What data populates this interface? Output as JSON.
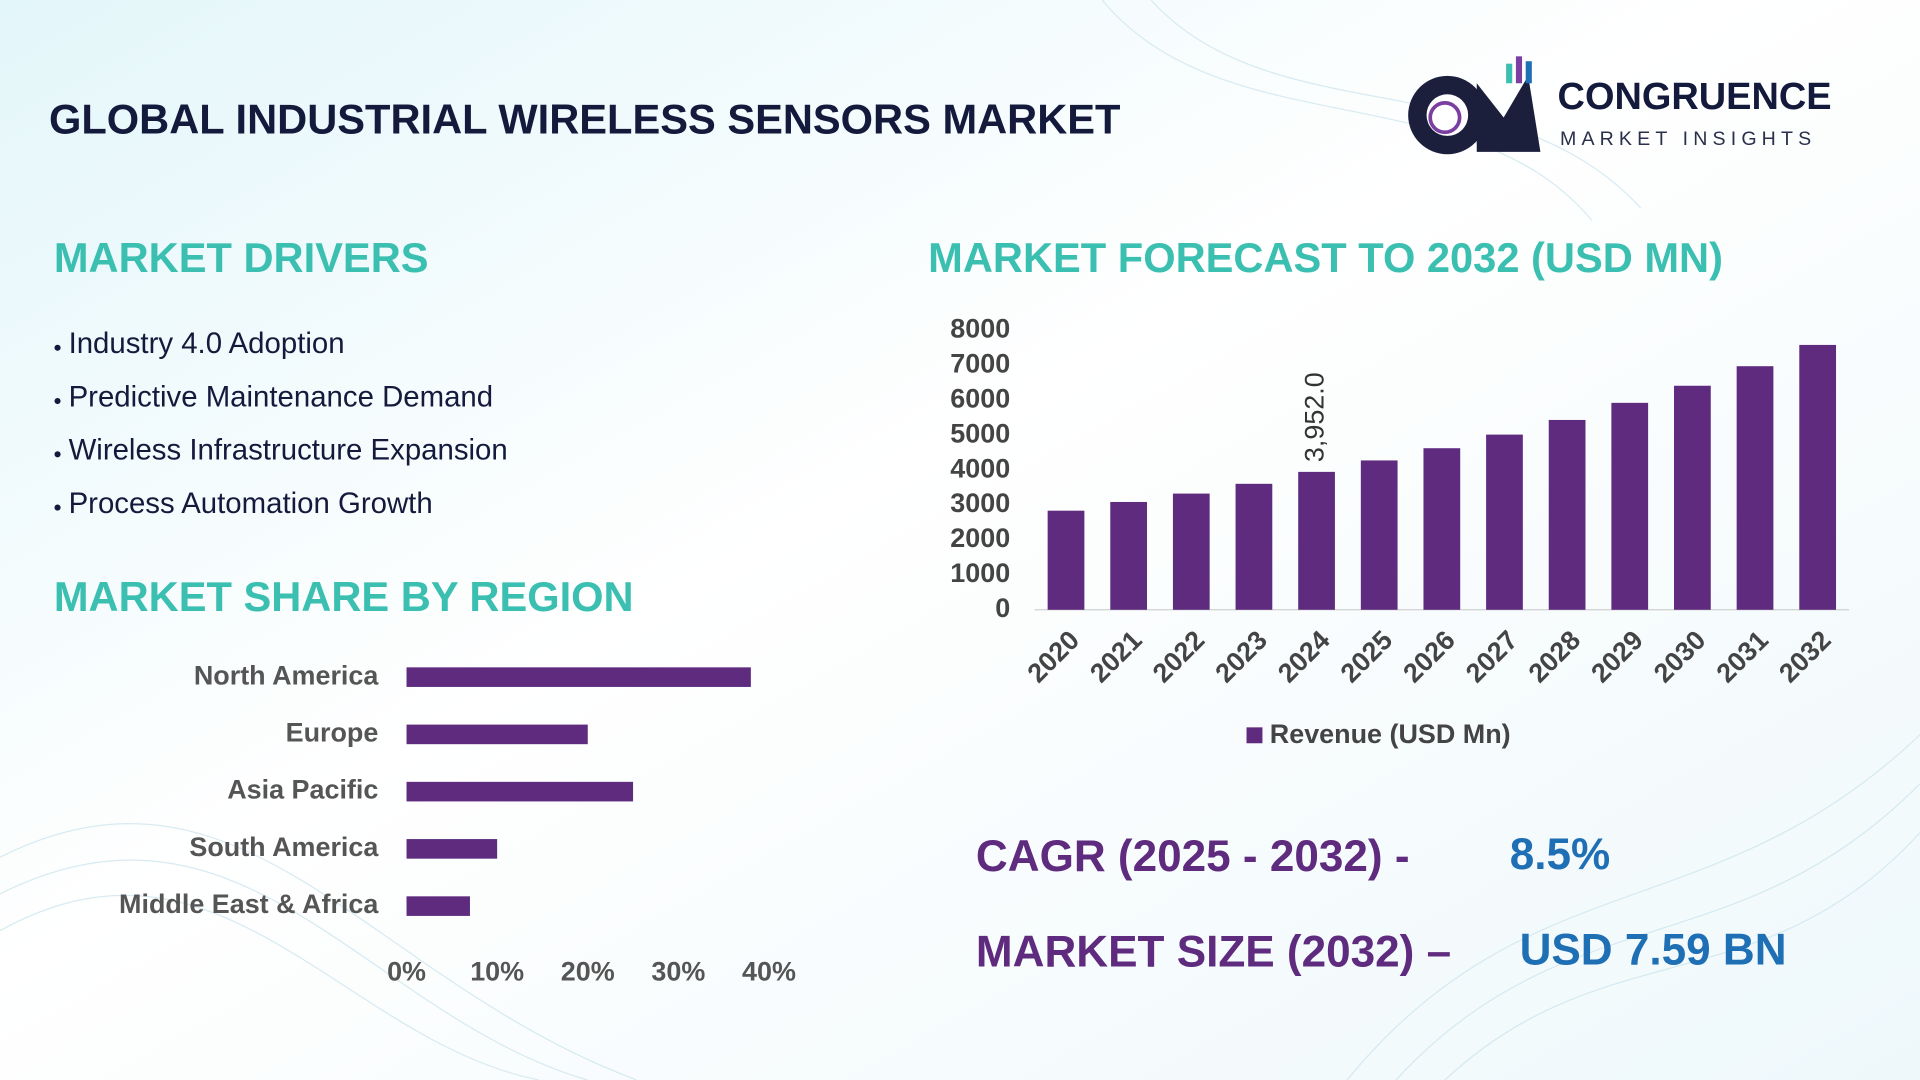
{
  "header": {
    "title": "GLOBAL INDUSTRIAL WIRELESS SENSORS MARKET"
  },
  "logo": {
    "name": "CONGRUENCE",
    "tagline": "MARKET INSIGHTS"
  },
  "drivers": {
    "title": "MARKET DRIVERS",
    "items": [
      "Industry 4.0 Adoption",
      "Predictive Maintenance Demand",
      "Wireless Infrastructure Expansion",
      "Process Automation Growth"
    ]
  },
  "chart_data": [
    {
      "type": "hbar",
      "title": "MARKET SHARE BY REGION",
      "categories": [
        "North America",
        "Europe",
        "Asia Pacific",
        "South America",
        "Middle East & Africa"
      ],
      "values": [
        38,
        20,
        25,
        10,
        7
      ],
      "color": "#5e2b7e",
      "xlim": [
        0,
        40
      ],
      "xticks": [
        {
          "value": 0,
          "label": "0%"
        },
        {
          "value": 10,
          "label": "10%"
        },
        {
          "value": 20,
          "label": "20%"
        },
        {
          "value": 30,
          "label": "30%"
        },
        {
          "value": 40,
          "label": "40%"
        }
      ]
    },
    {
      "type": "bar",
      "title": "MARKET FORECAST TO 2032 (USD MN)",
      "categories": [
        "2020",
        "2021",
        "2022",
        "2023",
        "2024",
        "2025",
        "2026",
        "2027",
        "2028",
        "2029",
        "2030",
        "2031",
        "2032"
      ],
      "series": [
        {
          "name": "Revenue (USD Mn)",
          "color": "#5e2b7e",
          "values": [
            2840,
            3090,
            3330,
            3610,
            3952,
            4280,
            4630,
            5020,
            5440,
            5930,
            6420,
            6980,
            7590
          ],
          "value_labels": [
            null,
            null,
            null,
            null,
            "3,952.0",
            null,
            null,
            null,
            null,
            null,
            null,
            null,
            null
          ]
        }
      ],
      "ylim": [
        0,
        8000
      ],
      "yticks": [
        0,
        1000,
        2000,
        3000,
        4000,
        5000,
        6000,
        7000,
        8000
      ],
      "legend": "bottom"
    }
  ],
  "summary": {
    "cagr_label": "CAGR (2025 - 2032) -",
    "cagr_value": "8.5%",
    "size_label": "MARKET SIZE (2032) –",
    "size_value": "USD 7.59 BN"
  }
}
